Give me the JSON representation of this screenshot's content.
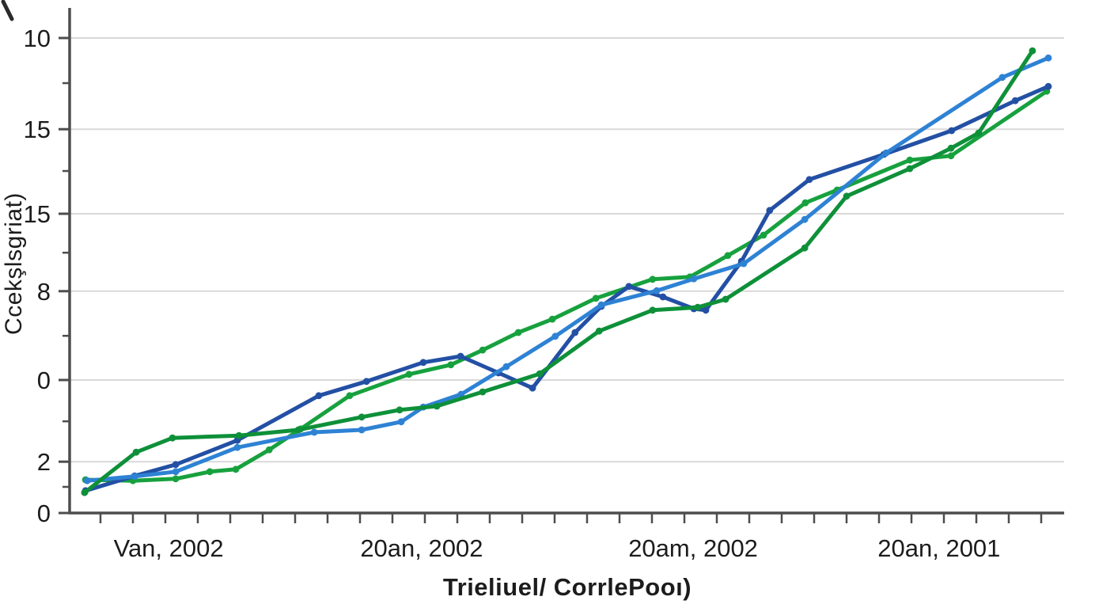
{
  "chart_data": {
    "type": "line",
    "title": "",
    "xlabel": "Trieliuel/ CorrlePooı)",
    "ylabel": "Ccekşlsgriat)",
    "grid": true,
    "legend": false,
    "axis_color": "#4d4d4d",
    "grid_color": "#d9d9d9",
    "tick_label_color": "#1c1c1c",
    "ylim": [
      0,
      10.6
    ],
    "y_ticks": [
      {
        "label": "10",
        "v": 10.0
      },
      {
        "label": "15",
        "v": 8.08
      },
      {
        "label": "15",
        "v": 6.3
      },
      {
        "label": "8",
        "v": 4.67
      },
      {
        "label": "0",
        "v": 2.8
      },
      {
        "label": "2",
        "v": 1.08
      },
      {
        "label": "0",
        "v": 0.0
      }
    ],
    "y_minor_ticks": [
      9.05,
      7.2,
      5.48,
      3.73,
      1.93,
      0.55
    ],
    "x_minor_tick_count": 30,
    "x_tick_labels": [
      {
        "label": "Van, 2002",
        "u": 2.1
      },
      {
        "label": "20an, 2002",
        "u": 9.9
      },
      {
        "label": "20am, 2002",
        "u": 18.27
      },
      {
        "label": "20an, 2001",
        "u": 25.85
      }
    ],
    "series": [
      {
        "name": "green-flat-start",
        "color": "#17a13e",
        "points": [
          [
            -0.46,
            0.7
          ],
          [
            1.0,
            0.68
          ],
          [
            2.32,
            0.72
          ],
          [
            3.37,
            0.87
          ],
          [
            4.17,
            0.92
          ],
          [
            5.2,
            1.33
          ],
          [
            6.17,
            1.77
          ],
          [
            7.68,
            2.47
          ],
          [
            9.51,
            2.92
          ],
          [
            10.8,
            3.12
          ],
          [
            11.78,
            3.43
          ],
          [
            12.88,
            3.8
          ],
          [
            13.93,
            4.08
          ],
          [
            15.27,
            4.52
          ],
          [
            17.02,
            4.92
          ],
          [
            18.17,
            4.97
          ],
          [
            19.34,
            5.42
          ],
          [
            20.44,
            5.85
          ],
          [
            21.73,
            6.53
          ],
          [
            22.71,
            6.8
          ],
          [
            24.95,
            7.43
          ],
          [
            26.22,
            7.52
          ],
          [
            29.17,
            8.88
          ]
        ]
      },
      {
        "name": "navy",
        "color": "#2350a4",
        "points": [
          [
            -0.46,
            0.47
          ],
          [
            1.05,
            0.78
          ],
          [
            2.32,
            1.02
          ],
          [
            4.22,
            1.53
          ],
          [
            6.73,
            2.47
          ],
          [
            8.2,
            2.77
          ],
          [
            9.95,
            3.17
          ],
          [
            11.1,
            3.3
          ],
          [
            12.27,
            2.95
          ],
          [
            13.32,
            2.63
          ],
          [
            14.63,
            3.8
          ],
          [
            15.44,
            4.35
          ],
          [
            16.29,
            4.77
          ],
          [
            17.34,
            4.55
          ],
          [
            18.29,
            4.3
          ],
          [
            18.66,
            4.27
          ],
          [
            19.76,
            5.3
          ],
          [
            20.63,
            6.37
          ],
          [
            21.85,
            7.02
          ],
          [
            24.15,
            7.55
          ],
          [
            26.24,
            8.05
          ],
          [
            28.2,
            8.68
          ],
          [
            29.22,
            8.98
          ]
        ]
      },
      {
        "name": "light-blue",
        "color": "#2e82d4",
        "points": [
          [
            -0.41,
            0.68
          ],
          [
            1.05,
            0.77
          ],
          [
            2.32,
            0.87
          ],
          [
            4.22,
            1.38
          ],
          [
            6.59,
            1.7
          ],
          [
            8.05,
            1.75
          ],
          [
            9.27,
            1.92
          ],
          [
            9.95,
            2.23
          ],
          [
            11.12,
            2.5
          ],
          [
            12.51,
            3.08
          ],
          [
            14.02,
            3.72
          ],
          [
            15.44,
            4.38
          ],
          [
            17.15,
            4.68
          ],
          [
            18.29,
            4.93
          ],
          [
            19.83,
            5.25
          ],
          [
            21.71,
            6.18
          ],
          [
            24.22,
            7.58
          ],
          [
            27.8,
            9.17
          ],
          [
            29.22,
            9.58
          ]
        ]
      },
      {
        "name": "green-steep-start",
        "color": "#0e9039",
        "points": [
          [
            -0.49,
            0.43
          ],
          [
            1.1,
            1.28
          ],
          [
            2.22,
            1.58
          ],
          [
            4.27,
            1.63
          ],
          [
            6.1,
            1.75
          ],
          [
            8.05,
            2.02
          ],
          [
            9.22,
            2.17
          ],
          [
            10.37,
            2.25
          ],
          [
            11.78,
            2.55
          ],
          [
            13.54,
            2.93
          ],
          [
            15.37,
            3.83
          ],
          [
            17.02,
            4.27
          ],
          [
            18.41,
            4.33
          ],
          [
            19.27,
            4.5
          ],
          [
            21.71,
            5.58
          ],
          [
            23.0,
            6.67
          ],
          [
            24.95,
            7.25
          ],
          [
            26.22,
            7.68
          ],
          [
            27.07,
            8.0
          ],
          [
            28.73,
            9.73
          ]
        ]
      }
    ]
  }
}
